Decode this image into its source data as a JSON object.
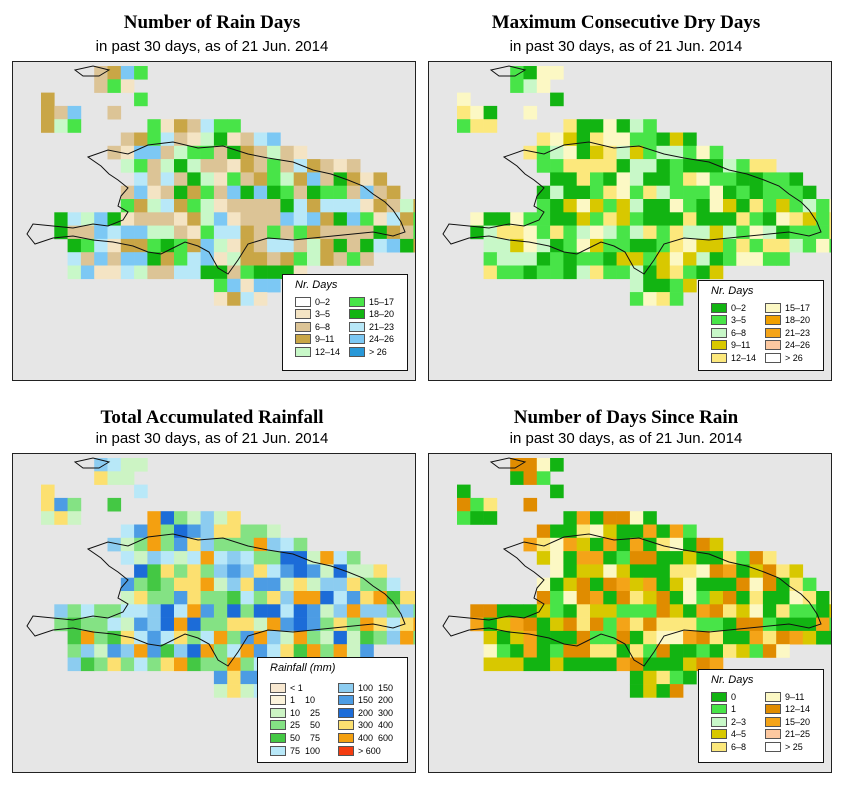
{
  "panels": [
    {
      "title": "Number of Rain Days",
      "subtitle": "in past 30 days, as of  21 Jun. 2014",
      "legend_title": "Nr. Days",
      "legend_items": [
        {
          "label": "0–2",
          "color": "#ffffff"
        },
        {
          "label": "3–5",
          "color": "#f4e4c4"
        },
        {
          "label": "6–8",
          "color": "#dcc496"
        },
        {
          "label": "9–11",
          "color": "#c9a646"
        },
        {
          "label": "12–14",
          "color": "#c8f8c8"
        },
        {
          "label": "15–17",
          "color": "#48e448"
        },
        {
          "label": "18–20",
          "color": "#12b412"
        },
        {
          "label": "21–23",
          "color": "#b8e8f8"
        },
        {
          "label": "24–26",
          "color": "#7cc8f4"
        },
        {
          "label": "> 26",
          "color": "#2898d8"
        }
      ]
    },
    {
      "title": "Maximum Consecutive Dry Days",
      "subtitle": "in past 30 days, as of  21 Jun. 2014",
      "legend_title": "Nr. Days",
      "legend_items": [
        {
          "label": "0–2",
          "color": "#12b412"
        },
        {
          "label": "3–5",
          "color": "#48e448"
        },
        {
          "label": "6–8",
          "color": "#c8f8c8"
        },
        {
          "label": "9–11",
          "color": "#d8c800"
        },
        {
          "label": "12–14",
          "color": "#fce87c"
        },
        {
          "label": "15–17",
          "color": "#fcf8c4"
        },
        {
          "label": "18–20",
          "color": "#f0a000"
        },
        {
          "label": "21–23",
          "color": "#f4a418"
        },
        {
          "label": "24–26",
          "color": "#fcc8a0"
        },
        {
          "label": "> 26",
          "color": "#ffffff"
        }
      ]
    },
    {
      "title": "Total Accumulated Rainfall",
      "subtitle": "in past 30 days, as of  21 Jun. 2014",
      "legend_title": "Rainfall (mm)",
      "legend_items": [
        {
          "label": "< 1",
          "color": "#f8e8d0"
        },
        {
          "label": "1    10",
          "color": "#fcf4dc"
        },
        {
          "label": "10    25",
          "color": "#ccf4c4"
        },
        {
          "label": "25    50",
          "color": "#84e284"
        },
        {
          "label": "50    75",
          "color": "#44c844"
        },
        {
          "label": "75  100",
          "color": "#b8e8f8"
        },
        {
          "label": "100  150",
          "color": "#8cccf0"
        },
        {
          "label": "150  200",
          "color": "#4c9ce4"
        },
        {
          "label": "200  300",
          "color": "#1c6cd8"
        },
        {
          "label": "300  400",
          "color": "#fce070"
        },
        {
          "label": "400  600",
          "color": "#f4a010"
        },
        {
          "label": "> 600",
          "color": "#f43c10"
        }
      ]
    },
    {
      "title": "Number of Days Since Rain",
      "subtitle": "in past 30 days, as of  21 Jun. 2014",
      "legend_title": "Nr. Days",
      "legend_items": [
        {
          "label": "0",
          "color": "#12b412"
        },
        {
          "label": "1",
          "color": "#48e448"
        },
        {
          "label": "2–3",
          "color": "#c8f8c8"
        },
        {
          "label": "4–5",
          "color": "#d8c800"
        },
        {
          "label": "6–8",
          "color": "#fce87c"
        },
        {
          "label": "9–11",
          "color": "#fcf8c4"
        },
        {
          "label": "12–14",
          "color": "#e08c00"
        },
        {
          "label": "15–20",
          "color": "#f4a418"
        },
        {
          "label": "21–25",
          "color": "#fcc8a0"
        },
        {
          "label": "> 25",
          "color": "#ffffff"
        }
      ]
    }
  ]
}
